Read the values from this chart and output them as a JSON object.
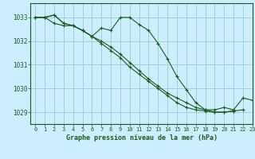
{
  "title": "Graphe pression niveau de la mer (hPa)",
  "bg_color": "#cceeff",
  "grid_color": "#99cccc",
  "line_color": "#1a5c1a",
  "text_color": "#1a5c1a",
  "xlim": [
    -0.5,
    23
  ],
  "ylim": [
    1028.5,
    1033.6
  ],
  "yticks": [
    1029,
    1030,
    1031,
    1032,
    1033
  ],
  "xticks": [
    0,
    1,
    2,
    3,
    4,
    5,
    6,
    7,
    8,
    9,
    10,
    11,
    12,
    13,
    14,
    15,
    16,
    17,
    18,
    19,
    20,
    21,
    22,
    23
  ],
  "series": [
    {
      "x": [
        0,
        1,
        2,
        3,
        4,
        5,
        6,
        7,
        8,
        9,
        10,
        11,
        12,
        13,
        14,
        15,
        16,
        17,
        18,
        19,
        20,
        21,
        22
      ],
      "y": [
        1033.0,
        1033.0,
        1033.1,
        1032.75,
        1032.65,
        1032.45,
        1032.2,
        1031.9,
        1031.6,
        1031.3,
        1030.9,
        1030.6,
        1030.3,
        1030.0,
        1029.7,
        1029.4,
        1029.2,
        1029.1,
        1029.05,
        1029.0,
        1029.0,
        1029.05,
        1029.1
      ]
    },
    {
      "x": [
        0,
        1,
        2,
        3,
        4,
        5,
        6,
        7,
        8,
        9,
        10,
        11,
        12,
        13,
        14,
        15,
        16,
        17,
        18,
        19,
        20,
        21
      ],
      "y": [
        1033.0,
        1033.0,
        1033.1,
        1032.75,
        1032.65,
        1032.45,
        1032.2,
        1032.55,
        1032.45,
        1033.0,
        1033.0,
        1032.7,
        1032.45,
        1031.9,
        1031.25,
        1030.5,
        1029.95,
        1029.4,
        1029.1,
        1029.0,
        1029.0,
        1029.05
      ]
    },
    {
      "x": [
        0,
        1,
        2,
        3,
        4,
        5,
        6,
        7,
        8,
        9,
        10,
        11,
        12,
        13,
        14,
        15,
        16,
        17,
        18,
        19,
        20,
        21,
        22,
        23
      ],
      "y": [
        1033.0,
        1033.0,
        1032.75,
        1032.65,
        1032.65,
        1032.45,
        1032.2,
        1032.0,
        1031.75,
        1031.45,
        1031.1,
        1030.75,
        1030.4,
        1030.1,
        1029.8,
        1029.6,
        1029.4,
        1029.2,
        1029.1,
        1029.1,
        1029.2,
        1029.1,
        1029.6,
        1029.5
      ]
    }
  ]
}
